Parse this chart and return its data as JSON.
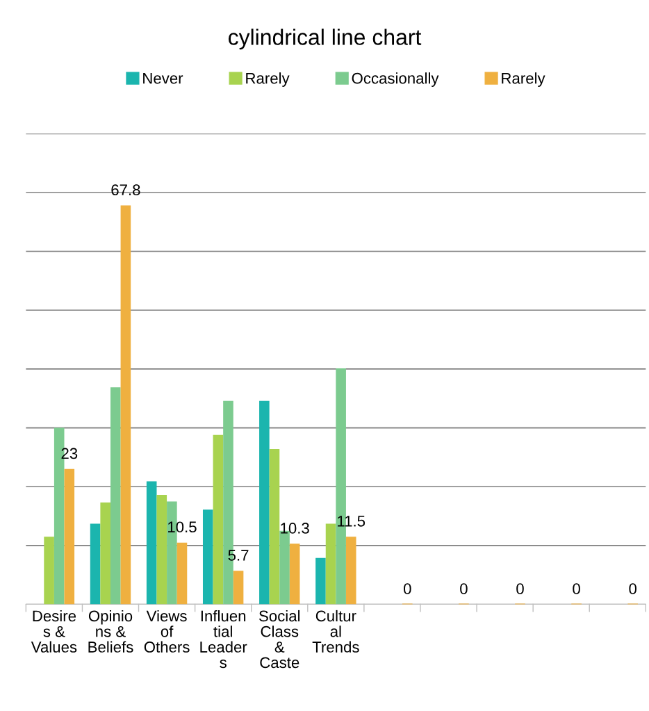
{
  "chart_data": {
    "type": "bar",
    "title": "cylindrical line chart",
    "categories": [
      "Desire\ns &\nValues",
      "Opinio\nns &\nBeliefs",
      "Views\nof\nOthers",
      "Influen\ntial\nLeader\ns",
      "Social\nClass\n&\nCaste",
      "Cultur\nal\nTrends",
      null,
      null,
      null,
      null,
      null
    ],
    "series": [
      {
        "name": "Never",
        "color": "#1bb5ae",
        "values": [
          null,
          13.7,
          20.9,
          16.1,
          34.6,
          7.9,
          null,
          null,
          null,
          null,
          null
        ]
      },
      {
        "name": "Rarely",
        "color": "#a8d34f",
        "values": [
          11.5,
          17.3,
          18.6,
          28.8,
          26.4,
          13.7,
          null,
          null,
          null,
          null,
          null
        ]
      },
      {
        "name": "Occasionally",
        "color": "#7ccb8f",
        "values": [
          30,
          36.9,
          17.5,
          34.6,
          12.5,
          40.1,
          null,
          null,
          null,
          null,
          null
        ]
      },
      {
        "name": "Rarely",
        "color": "#efb040",
        "values": [
          23,
          67.8,
          10.5,
          5.7,
          10.3,
          11.5,
          0,
          0,
          0,
          0,
          0
        ],
        "value_labels": [
          "23",
          "67.8",
          "10.5",
          "5.7",
          "10.3",
          "11.5",
          "0",
          "0",
          "0",
          "0",
          "0"
        ]
      }
    ],
    "ylim": [
      0,
      80
    ],
    "yticks": [
      {
        "value": 0,
        "label": null
      },
      {
        "value": 10,
        "label": null
      },
      {
        "value": 20,
        "label": null
      },
      {
        "value": 30,
        "label": null
      },
      {
        "value": 40,
        "label": null
      },
      {
        "value": 50,
        "label": null
      },
      {
        "value": 60,
        "label": null
      },
      {
        "value": 70,
        "label": null
      },
      {
        "value": 80,
        "label": null
      }
    ],
    "tick_labels": "x",
    "grid": "y",
    "legend": "top"
  }
}
